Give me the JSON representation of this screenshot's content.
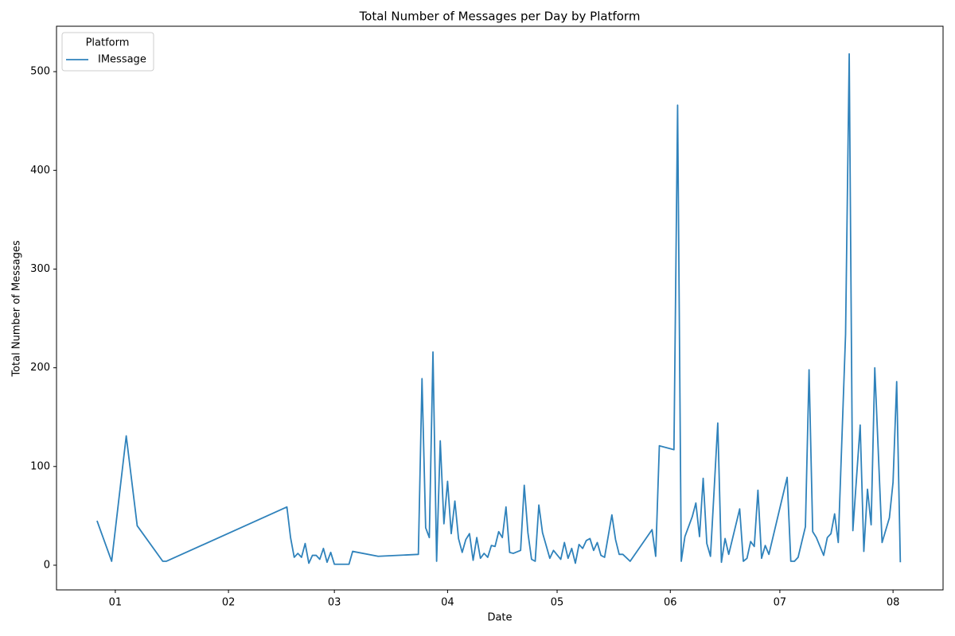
{
  "chart_data": {
    "type": "line",
    "title": "Total Number of Messages per Day by Platform",
    "x_label": "Date",
    "y_label": "Total Number of Messages",
    "legend_title": "Platform",
    "legend_position": "upper left",
    "x": [
      -5,
      -1,
      3,
      6,
      13,
      14,
      47,
      48,
      49,
      50,
      51,
      52,
      53,
      54,
      55,
      56,
      57,
      58,
      59,
      60,
      64,
      65,
      72,
      83,
      84,
      85,
      86,
      87,
      88,
      89,
      90,
      91,
      92,
      93,
      94,
      95,
      96,
      97,
      98,
      99,
      100,
      101,
      102,
      103,
      104,
      105,
      106,
      107,
      108,
      109,
      111,
      112,
      113,
      114,
      115,
      116,
      117,
      119,
      120,
      122,
      123,
      124,
      125,
      126,
      127,
      128,
      129,
      130,
      131,
      132,
      133,
      134,
      136,
      137,
      138,
      139,
      141,
      147,
      148,
      149,
      153,
      154,
      155,
      156,
      158,
      159,
      160,
      161,
      162,
      163,
      164,
      165,
      166,
      167,
      168,
      171,
      172,
      173,
      174,
      175,
      176,
      177,
      178,
      179,
      184,
      185,
      186,
      187,
      189,
      190,
      191,
      192,
      194,
      195,
      196,
      197,
      198,
      200,
      201,
      202,
      204,
      205,
      206,
      207,
      208,
      210,
      212,
      213,
      214,
      215
    ],
    "series": [
      {
        "name": "IMessage",
        "color": "#2f82bb",
        "values": [
          45,
          4,
          131,
          40,
          4,
          4,
          59,
          28,
          8,
          12,
          8,
          22,
          2,
          10,
          10,
          6,
          17,
          3,
          13,
          1,
          1,
          14,
          9,
          11,
          189,
          38,
          28,
          216,
          4,
          126,
          42,
          85,
          32,
          65,
          27,
          13,
          26,
          32,
          5,
          28,
          7,
          12,
          8,
          20,
          19,
          34,
          28,
          59,
          13,
          12,
          15,
          81,
          33,
          6,
          4,
          61,
          33,
          7,
          15,
          6,
          23,
          7,
          17,
          2,
          21,
          17,
          25,
          27,
          15,
          23,
          10,
          8,
          51,
          26,
          11,
          11,
          4,
          36,
          9,
          121,
          117,
          466,
          4,
          29,
          49,
          63,
          29,
          88,
          22,
          9,
          76,
          144,
          3,
          27,
          11,
          57,
          4,
          7,
          24,
          19,
          76,
          7,
          20,
          11,
          89,
          4,
          4,
          8,
          39,
          198,
          34,
          28,
          10,
          28,
          32,
          52,
          23,
          234,
          518,
          35,
          142,
          14,
          77,
          41,
          200,
          23,
          48,
          84,
          186,
          3
        ]
      }
    ],
    "xlim": [
      -16.1,
      226.7
    ],
    "xticks": [
      {
        "value": 0,
        "label": "01"
      },
      {
        "value": 31,
        "label": "02"
      },
      {
        "value": 60,
        "label": "03"
      },
      {
        "value": 91,
        "label": "04"
      },
      {
        "value": 121,
        "label": "05"
      },
      {
        "value": 152,
        "label": "06"
      },
      {
        "value": 182,
        "label": "07"
      },
      {
        "value": 213,
        "label": "08"
      }
    ],
    "ylim": [
      -25,
      546
    ],
    "yticks": [
      0,
      100,
      200,
      300,
      400,
      500
    ],
    "grid": false
  }
}
